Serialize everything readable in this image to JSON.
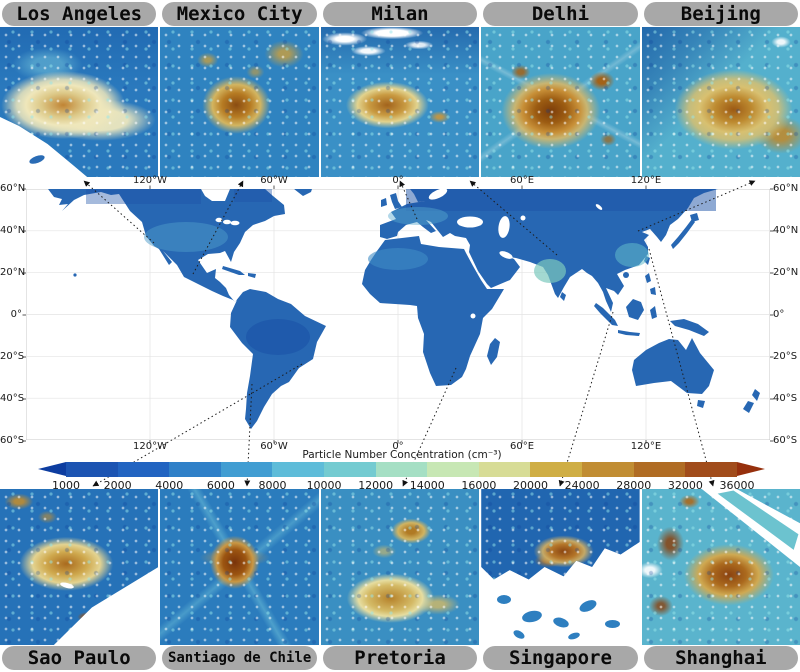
{
  "cities": {
    "top": [
      {
        "name": "Los Angeles"
      },
      {
        "name": "Mexico City"
      },
      {
        "name": "Milan"
      },
      {
        "name": "Delhi"
      },
      {
        "name": "Beijing"
      }
    ],
    "bottom": [
      {
        "name": "Sao Paulo"
      },
      {
        "name": "Santiago de Chile"
      },
      {
        "name": "Pretoria"
      },
      {
        "name": "Singapore"
      },
      {
        "name": "Shanghai"
      }
    ]
  },
  "world_map": {
    "lon_ticks": [
      "120°W",
      "60°W",
      "0°",
      "60°E",
      "120°E"
    ],
    "lat_ticks": [
      "60°N",
      "40°N",
      "20°N",
      "0°",
      "20°S",
      "40°S",
      "60°S"
    ]
  },
  "colorbar": {
    "title": "Particle Number Concentration (cm⁻³)",
    "ticks": [
      "1000",
      "2000",
      "4000",
      "6000",
      "8000",
      "10000",
      "12000",
      "14000",
      "16000",
      "20000",
      "24000",
      "28000",
      "32000",
      "36000"
    ],
    "segment_colors": [
      "#1c54b2",
      "#2264c1",
      "#2f80c8",
      "#419dd2",
      "#5ebcd9",
      "#74cbd1",
      "#a5dfc4",
      "#c7e7b4",
      "#d7dc96",
      "#cfae45",
      "#c18d33",
      "#b06c24",
      "#a14c1b"
    ],
    "under_color": "#0d3da0",
    "over_color": "#96300d"
  },
  "colors": {
    "land_base": "#2767b3",
    "ocean": "#ffffff",
    "label_pill": "#a8a8a8"
  }
}
